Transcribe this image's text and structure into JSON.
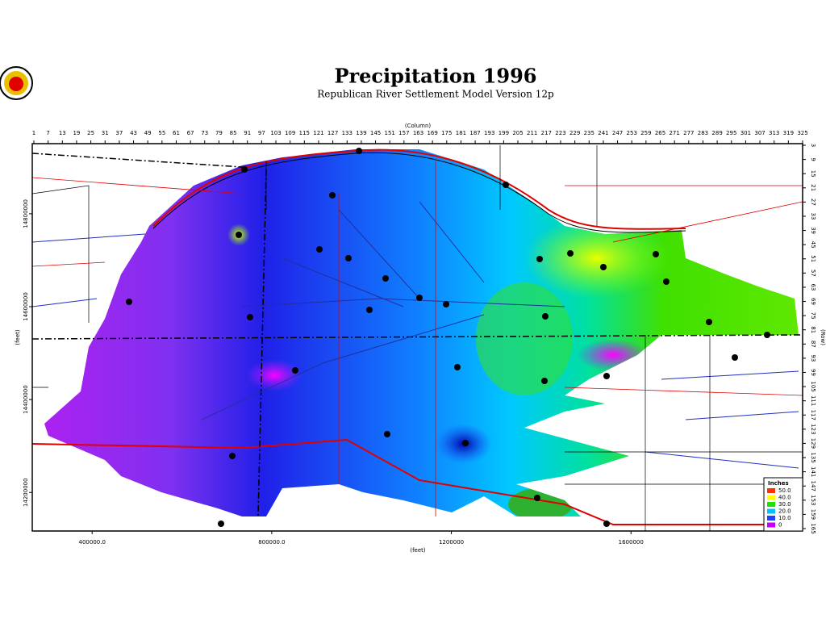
{
  "header": {
    "title": "Precipitation 1996",
    "subtitle": "Republican River Settlement Model Version 12p"
  },
  "map": {
    "column_axis": {
      "title": "(Column)",
      "lim": [
        1,
        325
      ],
      "ticks": [
        1,
        7,
        13,
        19,
        25,
        31,
        37,
        43,
        49,
        55,
        61,
        67,
        73,
        79,
        85,
        91,
        97,
        103,
        109,
        115,
        121,
        127,
        133,
        139,
        145,
        151,
        157,
        163,
        169,
        175,
        181,
        187,
        193,
        199,
        205,
        211,
        217,
        223,
        229,
        235,
        241,
        247,
        253,
        259,
        265,
        271,
        277,
        283,
        289,
        295,
        301,
        307,
        313,
        319,
        325
      ]
    },
    "row_axis": {
      "title": "(Row)",
      "lim": [
        3,
        165
      ],
      "ticks": [
        3,
        9,
        15,
        21,
        27,
        33,
        39,
        45,
        51,
        57,
        63,
        69,
        75,
        81,
        87,
        93,
        99,
        105,
        111,
        117,
        123,
        129,
        135,
        141,
        147,
        153,
        159,
        165
      ]
    },
    "x_feet_axis": {
      "title": "(feet)",
      "lim": [
        266667,
        1982222
      ],
      "ticks": [
        {
          "value": 400000,
          "label": "400000.0"
        },
        {
          "value": 800000,
          "label": "800000.0"
        },
        1200000,
        1600000
      ]
    },
    "y_feet_axis": {
      "title": "(feet)",
      "lim": [
        14117000,
        14951000
      ],
      "ticks": [
        14800000,
        14600000,
        14400000,
        14200000
      ]
    },
    "legend": {
      "title": "Inches",
      "items": [
        {
          "value": 50,
          "label": "50.0",
          "color": "#ff3000"
        },
        {
          "value": 40,
          "label": "40.0",
          "color": "#ffff00"
        },
        {
          "value": 30,
          "label": "30.0",
          "color": "#20e000"
        },
        {
          "value": 20,
          "label": "20.0",
          "color": "#00c0ff"
        },
        {
          "value": 10,
          "label": "10.0",
          "color": "#2040ff"
        },
        {
          "value": 0,
          "label": "0",
          "color": "#c000ff"
        }
      ]
    }
  }
}
